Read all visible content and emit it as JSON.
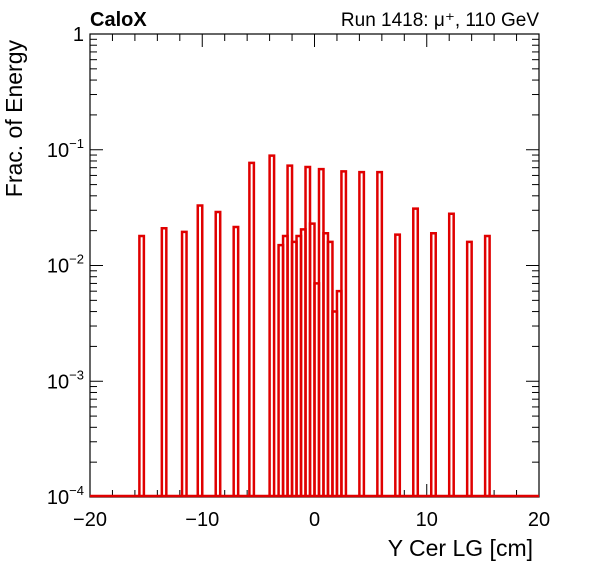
{
  "chart_data": {
    "type": "histogram",
    "title_left": "CaloX",
    "title_right": "Run 1418:   μ⁺, 110 GeV",
    "xlabel": "Y Cer LG [cm]",
    "ylabel": "Frac. of Energy",
    "xlim": [
      -20,
      20
    ],
    "ylim": [
      0.0001,
      1
    ],
    "y_scale": "log",
    "x_ticks": [
      -20,
      -10,
      0,
      10,
      20
    ],
    "x_tick_labels": [
      "−20",
      "−10",
      "0",
      "10",
      "20"
    ],
    "y_ticks": [
      {
        "value": 1,
        "base": "1",
        "exp": ""
      },
      {
        "value": 0.1,
        "base": "10",
        "exp": "−1"
      },
      {
        "value": 0.01,
        "base": "10",
        "exp": "−2"
      },
      {
        "value": 0.001,
        "base": "10",
        "exp": "−3"
      },
      {
        "value": 0.0001,
        "base": "10",
        "exp": "−4"
      }
    ],
    "grid": false,
    "line_color": "#e00000",
    "bin_width": 0.4,
    "series": [
      {
        "bins": [
          {
            "x": -15.4,
            "value": 0.018
          },
          {
            "x": -13.4,
            "value": 0.021
          },
          {
            "x": -11.6,
            "value": 0.0195
          },
          {
            "x": -10.2,
            "value": 0.033
          },
          {
            "x": -8.6,
            "value": 0.029
          },
          {
            "x": -7.0,
            "value": 0.0215
          },
          {
            "x": -5.6,
            "value": 0.077
          },
          {
            "x": -3.8,
            "value": 0.089
          },
          {
            "x": -3.0,
            "value": 0.015
          },
          {
            "x": -2.6,
            "value": 0.018
          },
          {
            "x": -2.2,
            "value": 0.073
          },
          {
            "x": -1.8,
            "value": 0.016
          },
          {
            "x": -1.4,
            "value": 0.018
          },
          {
            "x": -1.0,
            "value": 0.0205
          },
          {
            "x": -0.6,
            "value": 0.071
          },
          {
            "x": -0.2,
            "value": 0.023
          },
          {
            "x": 0.2,
            "value": 0.007
          },
          {
            "x": 0.6,
            "value": 0.068
          },
          {
            "x": 1.0,
            "value": 0.019
          },
          {
            "x": 1.4,
            "value": 0.016
          },
          {
            "x": 1.8,
            "value": 0.004
          },
          {
            "x": 2.2,
            "value": 0.006
          },
          {
            "x": 2.6,
            "value": 0.065
          },
          {
            "x": 4.2,
            "value": 0.064
          },
          {
            "x": 5.8,
            "value": 0.064
          },
          {
            "x": 7.4,
            "value": 0.0185
          },
          {
            "x": 9.0,
            "value": 0.031
          },
          {
            "x": 10.6,
            "value": 0.019
          },
          {
            "x": 12.2,
            "value": 0.028
          },
          {
            "x": 13.8,
            "value": 0.016
          },
          {
            "x": 15.4,
            "value": 0.018
          }
        ]
      }
    ]
  }
}
